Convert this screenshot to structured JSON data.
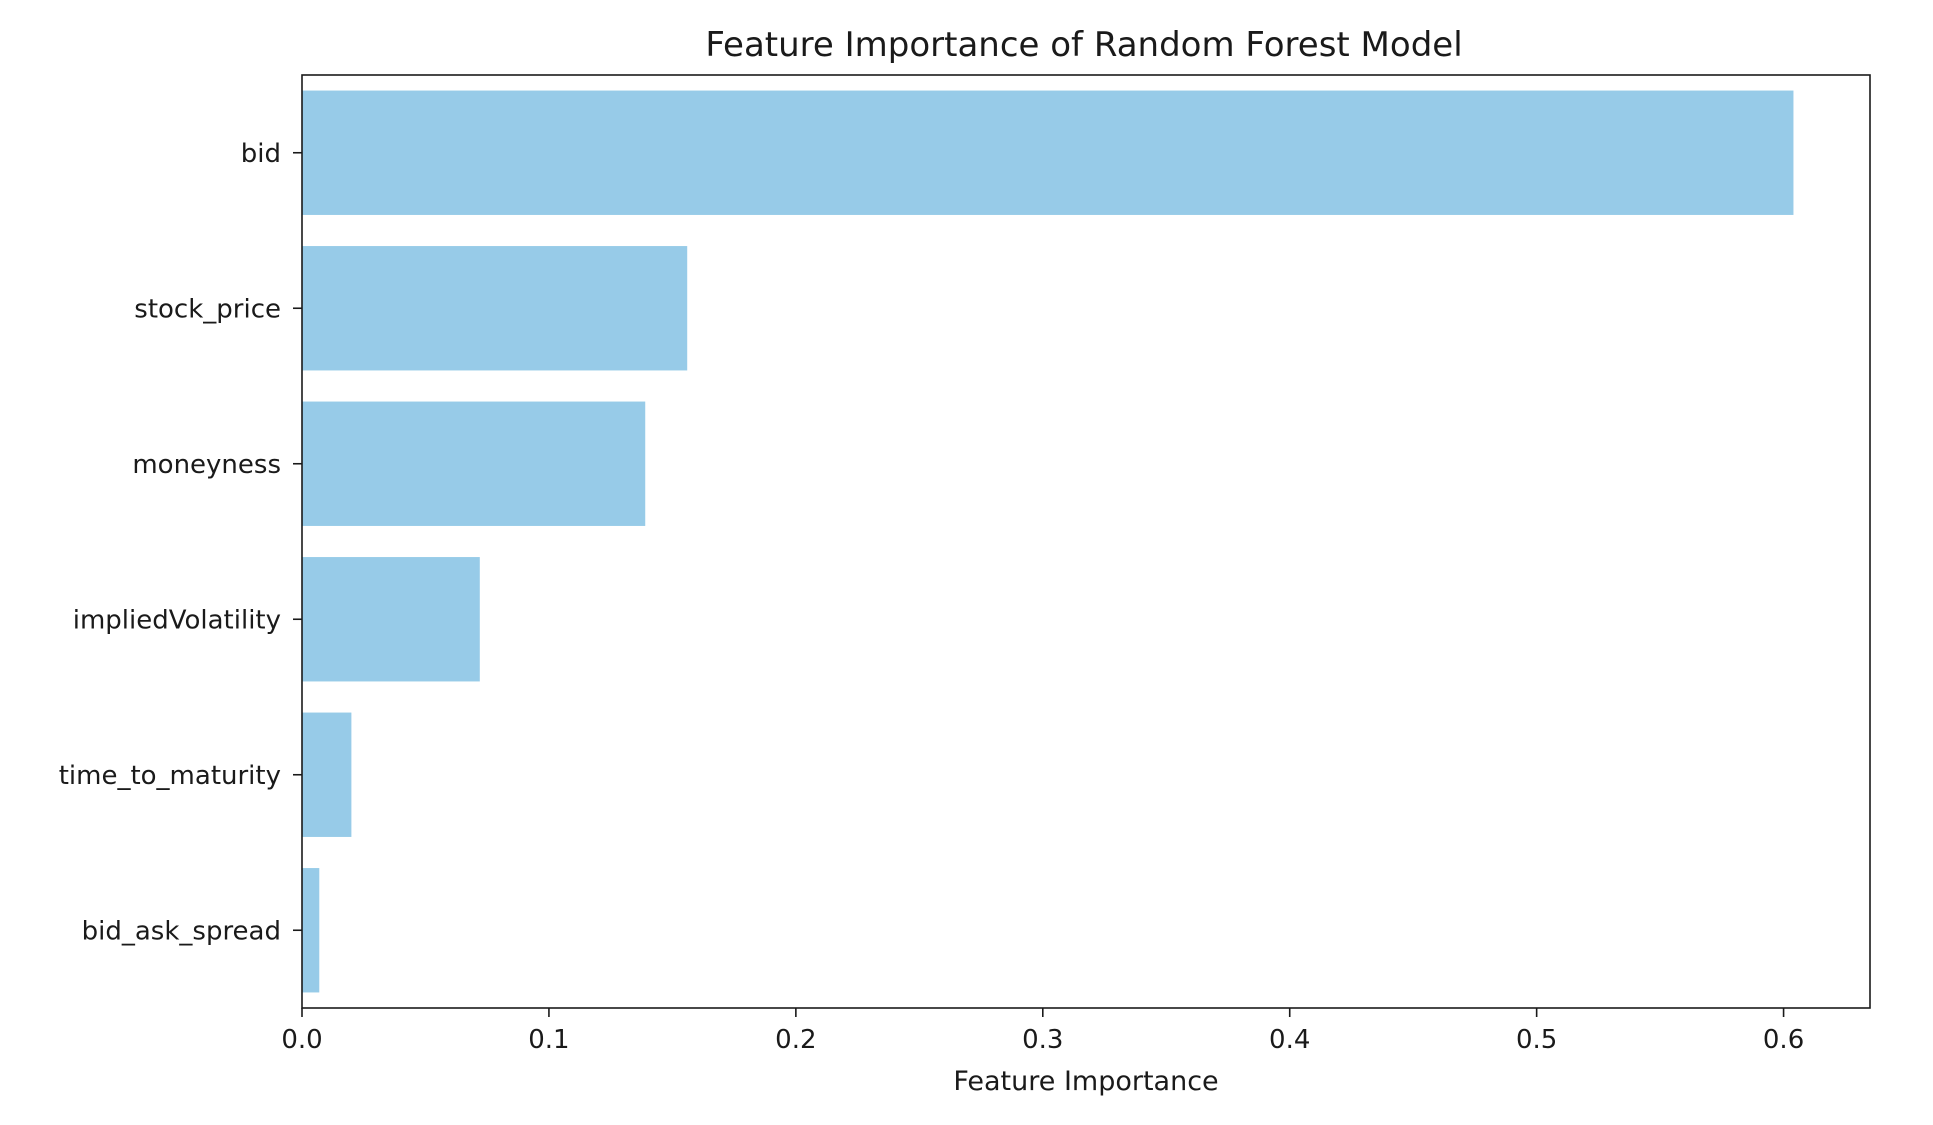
{
  "chart_data": {
    "type": "bar",
    "orientation": "horizontal",
    "title": "Feature Importance of Random Forest Model",
    "xlabel": "Feature Importance",
    "ylabel": "",
    "categories": [
      "bid",
      "stock_price",
      "moneyness",
      "impliedVolatility",
      "time_to_maturity",
      "bid_ask_spread"
    ],
    "values": [
      0.604,
      0.156,
      0.139,
      0.072,
      0.02,
      0.007
    ],
    "xlim": [
      0,
      0.635
    ],
    "xticks": [
      0.0,
      0.1,
      0.2,
      0.3,
      0.4,
      0.5,
      0.6
    ],
    "xtick_labels": [
      "0.0",
      "0.1",
      "0.2",
      "0.3",
      "0.4",
      "0.5",
      "0.6"
    ],
    "grid": false,
    "legend": "none",
    "colors": {
      "bar": "#97cbe8",
      "axis": "#1a1a1a",
      "background": "#ffffff"
    }
  }
}
